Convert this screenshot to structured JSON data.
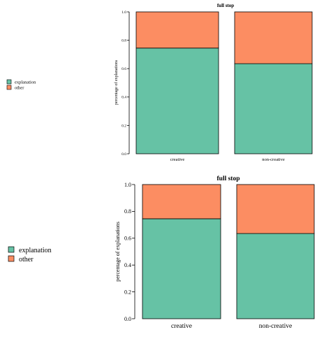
{
  "colors": {
    "explanation": "#66C2A5",
    "other": "#FC8D62",
    "outline": "#000000"
  },
  "chart_data": [
    {
      "type": "bar",
      "stacked": true,
      "title": "full stop",
      "xlabel": "",
      "ylabel": "percentage of explanations",
      "categories": [
        "creative",
        "non-creative"
      ],
      "series": [
        {
          "name": "explanation",
          "values": [
            0.745,
            0.635
          ]
        },
        {
          "name": "other",
          "values": [
            0.255,
            0.365
          ]
        }
      ],
      "ylim": [
        0,
        1
      ],
      "yticks": [
        "0.0",
        "0.2",
        "0.4",
        "0.6",
        "0.8",
        "1.0"
      ],
      "legend": {
        "placement": "left",
        "entries": [
          "explanation",
          "other"
        ]
      },
      "grid": false
    },
    {
      "type": "bar",
      "stacked": true,
      "title": "full stop",
      "xlabel": "",
      "ylabel": "percentage of explanations",
      "categories": [
        "creative",
        "non-creative"
      ],
      "series": [
        {
          "name": "explanation",
          "values": [
            0.745,
            0.635
          ]
        },
        {
          "name": "other",
          "values": [
            0.255,
            0.365
          ]
        }
      ],
      "ylim": [
        0,
        1
      ],
      "yticks": [
        "0.0",
        "0.2",
        "0.4",
        "0.6",
        "0.8",
        "1.0"
      ],
      "legend": {
        "placement": "left",
        "entries": [
          "explanation",
          "other"
        ]
      },
      "grid": false
    }
  ]
}
